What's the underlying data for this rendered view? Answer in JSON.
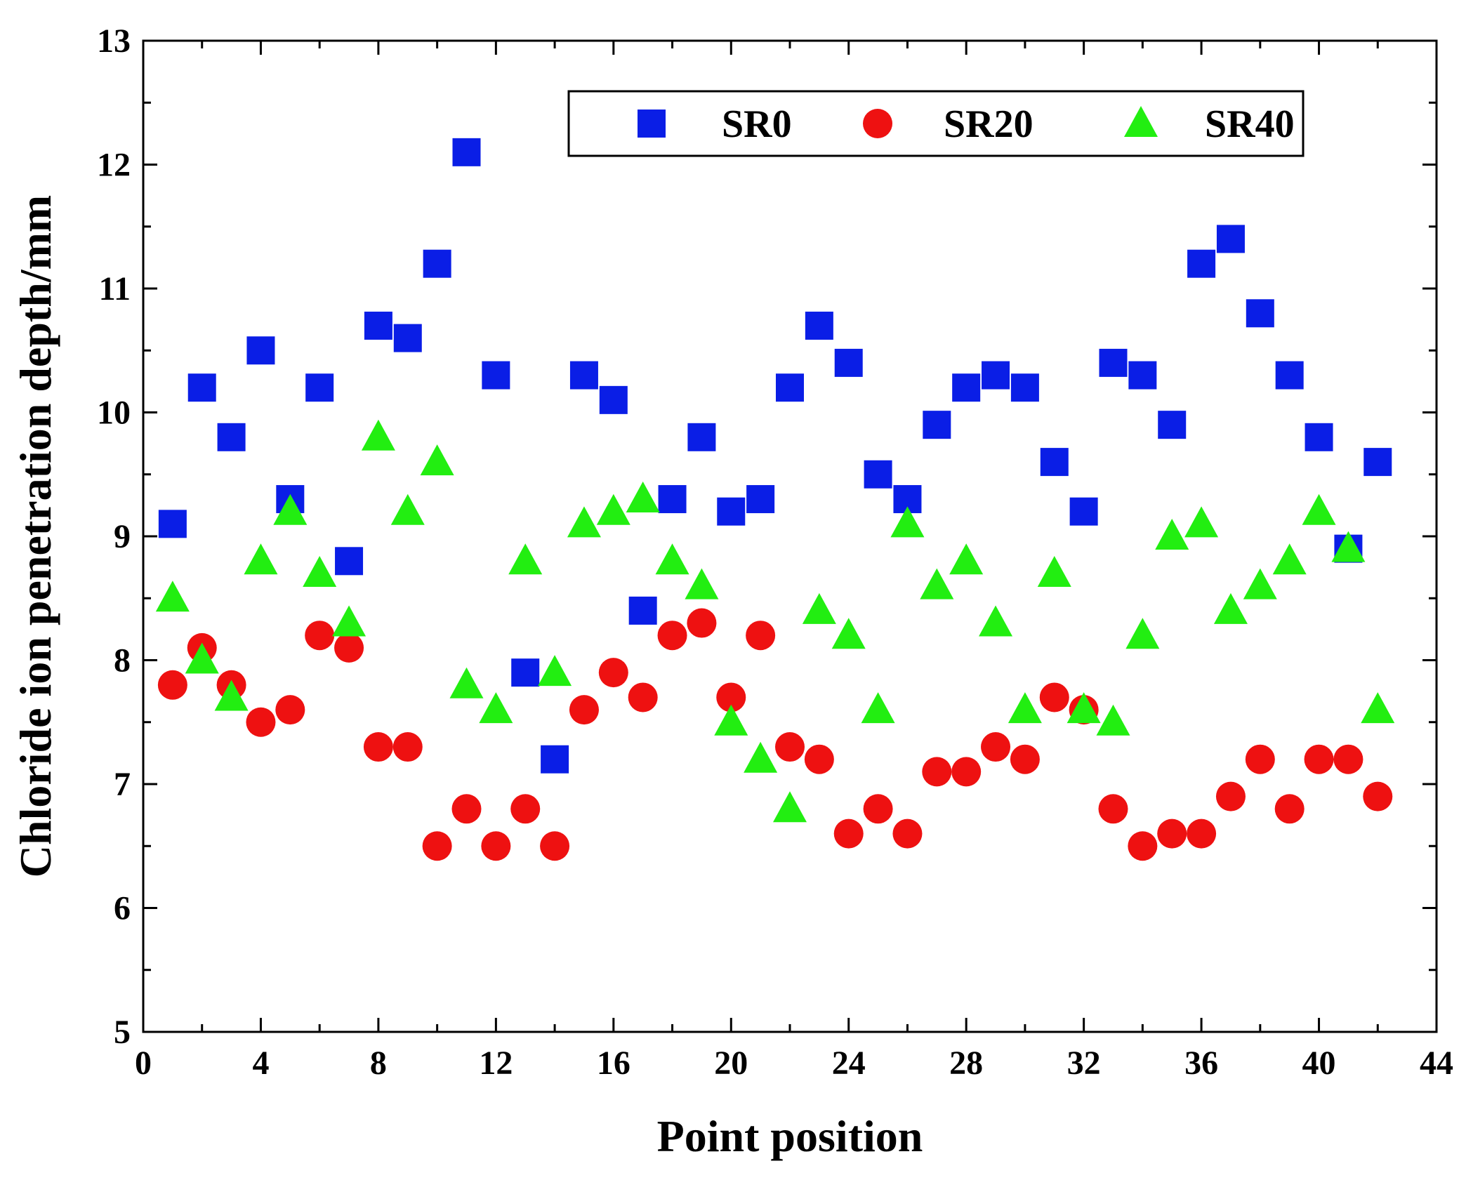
{
  "chart_data": {
    "type": "scatter",
    "title": "",
    "xlabel": "Point position",
    "ylabel": "Chloride ion penetration depth/mm",
    "xlim": [
      0,
      44
    ],
    "ylim": [
      5,
      13
    ],
    "xticks": [
      0,
      4,
      8,
      12,
      16,
      20,
      24,
      28,
      32,
      36,
      40,
      44
    ],
    "yticks": [
      5,
      6,
      7,
      8,
      9,
      10,
      11,
      12,
      13
    ],
    "grid": false,
    "legend_position": "top-right",
    "x": [
      1,
      2,
      3,
      4,
      5,
      6,
      7,
      8,
      9,
      10,
      11,
      12,
      13,
      14,
      15,
      16,
      17,
      18,
      19,
      20,
      21,
      22,
      23,
      24,
      25,
      26,
      27,
      28,
      29,
      30,
      31,
      32,
      33,
      34,
      35,
      36,
      37,
      38,
      39,
      40,
      41,
      42
    ],
    "series": [
      {
        "name": "SR0",
        "marker": "square",
        "color": "#0a1ee6",
        "values": [
          9.1,
          10.2,
          9.8,
          10.5,
          9.3,
          10.2,
          8.8,
          10.7,
          10.6,
          11.2,
          12.1,
          10.3,
          7.9,
          7.2,
          10.3,
          10.1,
          8.4,
          9.3,
          9.8,
          9.2,
          9.3,
          10.2,
          10.7,
          10.4,
          9.5,
          9.3,
          9.9,
          10.2,
          10.3,
          10.2,
          9.6,
          9.2,
          10.4,
          10.3,
          9.9,
          11.2,
          11.4,
          10.8,
          10.3,
          9.8,
          8.9,
          9.6
        ]
      },
      {
        "name": "SR20",
        "marker": "circle",
        "color": "#ee1111",
        "values": [
          7.8,
          8.1,
          7.8,
          7.5,
          7.6,
          8.2,
          8.1,
          7.3,
          7.3,
          6.5,
          6.8,
          6.5,
          6.8,
          6.5,
          7.6,
          7.9,
          7.7,
          8.2,
          8.3,
          7.7,
          8.2,
          7.3,
          7.2,
          6.6,
          6.8,
          6.6,
          7.1,
          7.1,
          7.3,
          7.2,
          7.7,
          7.6,
          6.8,
          6.5,
          6.6,
          6.6,
          6.9,
          7.2,
          6.8,
          7.2,
          7.2,
          6.9
        ]
      },
      {
        "name": "SR40",
        "marker": "triangle",
        "color": "#22ee11",
        "values": [
          8.5,
          8.0,
          7.7,
          8.8,
          9.2,
          8.7,
          8.3,
          9.8,
          9.2,
          9.6,
          7.8,
          7.6,
          8.8,
          7.9,
          9.1,
          9.2,
          9.3,
          8.8,
          8.6,
          7.5,
          7.2,
          6.8,
          8.4,
          8.2,
          7.6,
          9.1,
          8.6,
          8.8,
          8.3,
          7.6,
          8.7,
          7.6,
          7.5,
          8.2,
          9.0,
          9.1,
          8.4,
          8.6,
          8.8,
          9.2,
          8.9,
          7.6
        ]
      }
    ]
  }
}
